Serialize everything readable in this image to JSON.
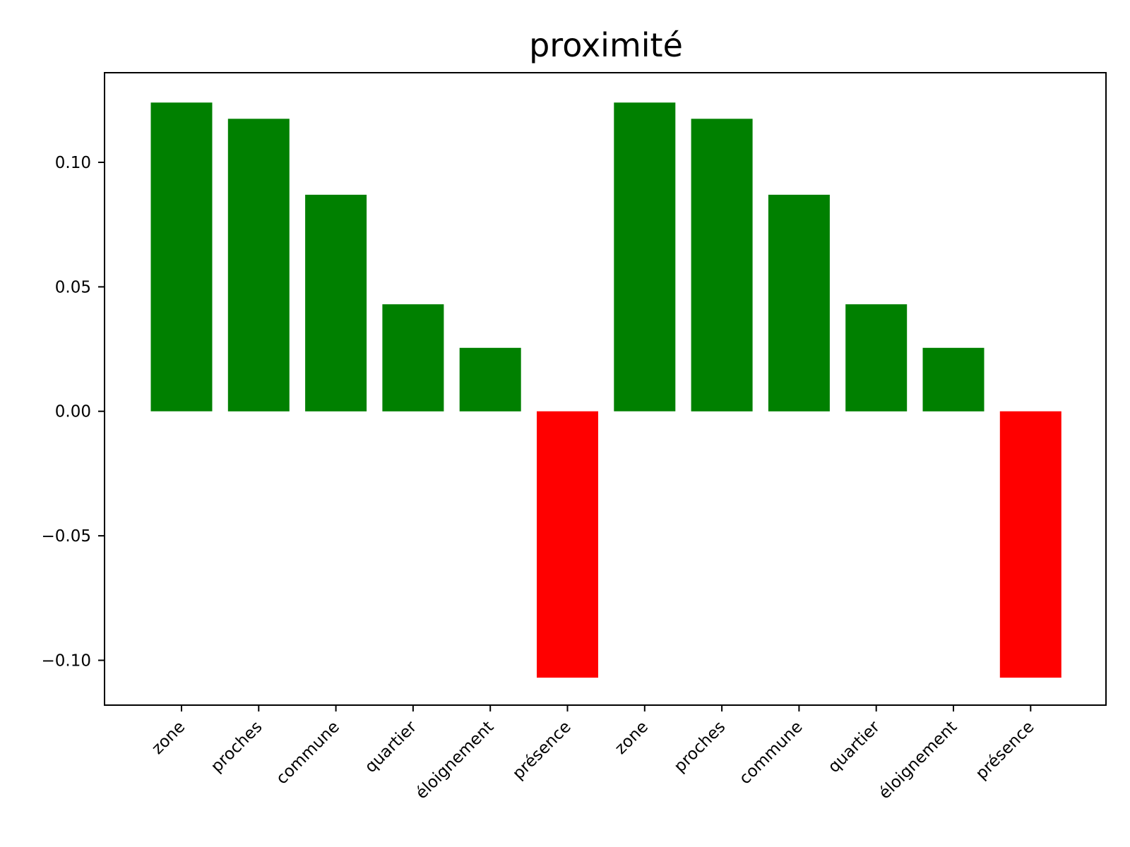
{
  "chart_data": {
    "type": "bar",
    "title": "proximité",
    "xlabel": "",
    "ylabel": "",
    "categories": [
      "zone",
      "proches",
      "commune",
      "quartier",
      "éloignement",
      "présence",
      "zone",
      "proches",
      "commune",
      "quartier",
      "éloignement",
      "présence"
    ],
    "values": [
      0.124,
      0.1175,
      0.087,
      0.043,
      0.0255,
      -0.107,
      0.124,
      0.1175,
      0.087,
      0.043,
      0.0255,
      -0.107
    ],
    "ylim": [
      -0.118,
      0.136
    ],
    "yticks": [
      0.1,
      0.05,
      0.0,
      -0.05,
      -0.1
    ],
    "ytick_labels": [
      "0.10",
      "0.05",
      "0.00",
      "−0.05",
      "−0.10"
    ],
    "grid": false,
    "colors": {
      "positive": "#008000",
      "negative": "#ff0000"
    }
  }
}
